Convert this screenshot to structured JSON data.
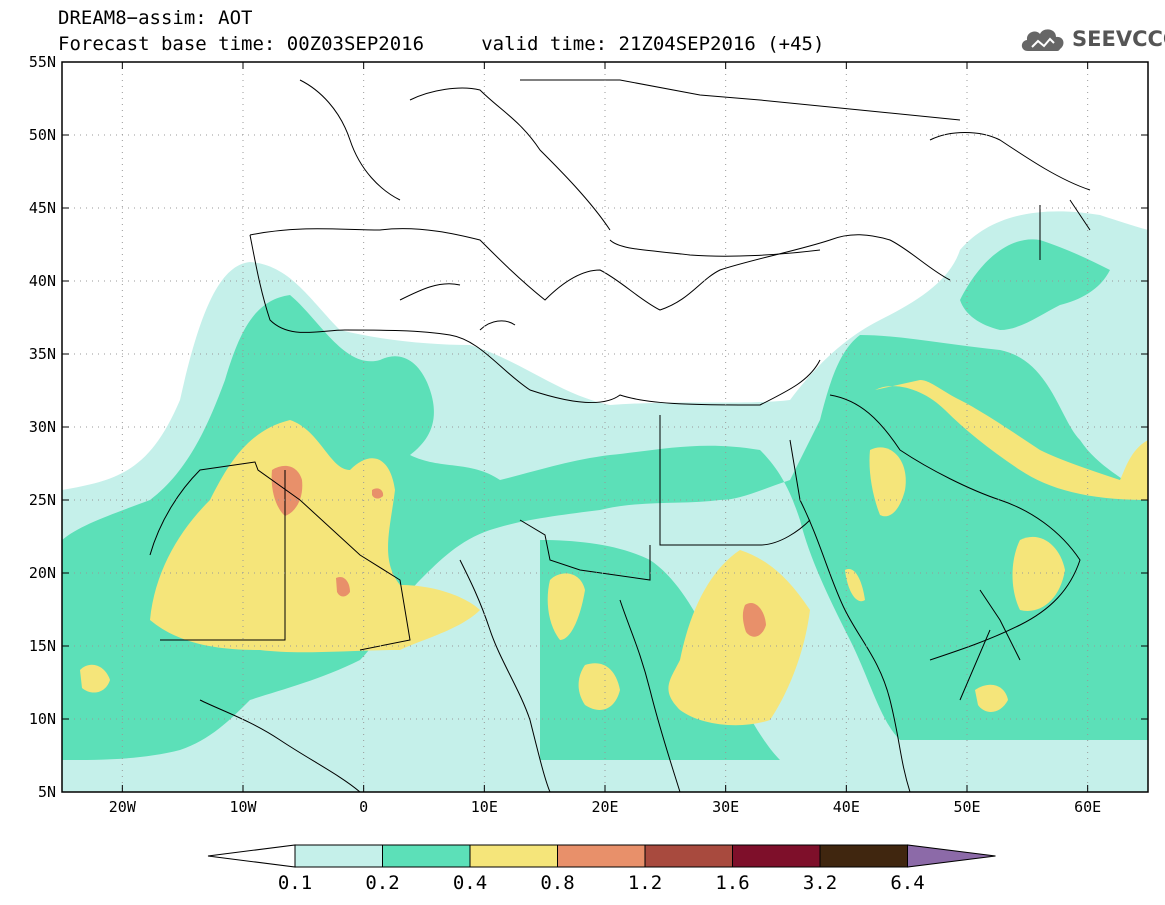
{
  "header": {
    "title_line1": "DREAM8−assim: AOT",
    "title_line2": "Forecast base time: 00Z03SEP2016     valid time: 21Z04SEP2016 (+45)"
  },
  "logo": {
    "text": "SEEVCCC",
    "icon": "cloud-icon"
  },
  "map": {
    "lon_range": [
      -25,
      65
    ],
    "lat_range": [
      5,
      55
    ],
    "lat_ticks": [
      {
        "value": 55,
        "label": "55N"
      },
      {
        "value": 50,
        "label": "50N"
      },
      {
        "value": 45,
        "label": "45N"
      },
      {
        "value": 40,
        "label": "40N"
      },
      {
        "value": 35,
        "label": "35N"
      },
      {
        "value": 30,
        "label": "30N"
      },
      {
        "value": 25,
        "label": "25N"
      },
      {
        "value": 20,
        "label": "20N"
      },
      {
        "value": 15,
        "label": "15N"
      },
      {
        "value": 10,
        "label": "10N"
      },
      {
        "value": 5,
        "label": "5N"
      }
    ],
    "lon_ticks": [
      {
        "value": -20,
        "label": "20W"
      },
      {
        "value": -10,
        "label": "10W"
      },
      {
        "value": 0,
        "label": "0"
      },
      {
        "value": 10,
        "label": "10E"
      },
      {
        "value": 20,
        "label": "20E"
      },
      {
        "value": 30,
        "label": "30E"
      },
      {
        "value": 40,
        "label": "40E"
      },
      {
        "value": 50,
        "label": "50E"
      },
      {
        "value": 60,
        "label": "60E"
      }
    ],
    "grid": true
  },
  "colorbar": {
    "labels": [
      "0.1",
      "0.2",
      "0.4",
      "0.8",
      "1.2",
      "1.6",
      "3.2",
      "6.4"
    ],
    "colors": [
      "#ffffff",
      "#c5f0ea",
      "#5ce0b8",
      "#f5e57a",
      "#e8906a",
      "#a84a3e",
      "#7e0f2a",
      "#40260f",
      "#8c6aa8"
    ]
  },
  "palette": {
    "land_outline": "#000000",
    "light": "#c5f0ea",
    "green": "#5ce0b8",
    "yellow": "#f5e57a",
    "orange": "#e8906a"
  }
}
